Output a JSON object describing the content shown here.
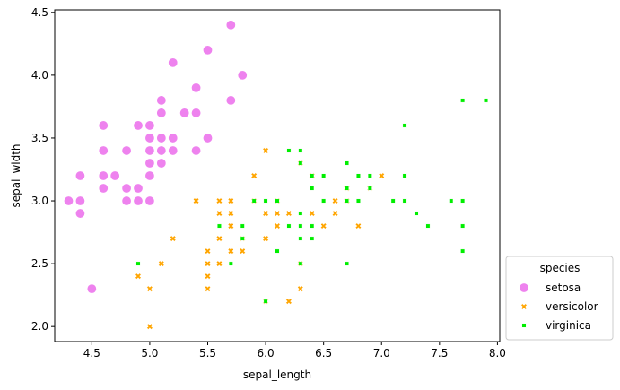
{
  "chart_data": {
    "type": "scatter",
    "title": "",
    "xlabel": "sepal_length",
    "ylabel": "sepal_width",
    "xlim": [
      4.18,
      8.02
    ],
    "ylim": [
      1.88,
      4.52
    ],
    "xticks": [
      "4.5",
      "5.0",
      "5.5",
      "6.0",
      "6.5",
      "7.0",
      "7.5",
      "8.0"
    ],
    "yticks": [
      "2.0",
      "2.5",
      "3.0",
      "3.5",
      "4.0",
      "4.5"
    ],
    "grid": false,
    "legend": {
      "title": "species",
      "placement": "outside-lower-right"
    },
    "series": [
      {
        "name": "setosa",
        "color": "#ee82ee",
        "marker": "circle",
        "points": [
          [
            5.1,
            3.5
          ],
          [
            4.9,
            3.0
          ],
          [
            4.7,
            3.2
          ],
          [
            4.6,
            3.1
          ],
          [
            5.0,
            3.6
          ],
          [
            5.4,
            3.9
          ],
          [
            4.6,
            3.4
          ],
          [
            5.0,
            3.4
          ],
          [
            4.4,
            2.9
          ],
          [
            4.9,
            3.1
          ],
          [
            5.4,
            3.7
          ],
          [
            4.8,
            3.4
          ],
          [
            4.8,
            3.0
          ],
          [
            4.3,
            3.0
          ],
          [
            5.8,
            4.0
          ],
          [
            5.7,
            4.4
          ],
          [
            5.4,
            3.9
          ],
          [
            5.1,
            3.5
          ],
          [
            5.7,
            3.8
          ],
          [
            5.1,
            3.8
          ],
          [
            5.4,
            3.4
          ],
          [
            5.1,
            3.7
          ],
          [
            4.6,
            3.6
          ],
          [
            5.1,
            3.3
          ],
          [
            4.8,
            3.4
          ],
          [
            5.0,
            3.0
          ],
          [
            5.0,
            3.4
          ],
          [
            5.2,
            3.5
          ],
          [
            5.2,
            3.4
          ],
          [
            4.7,
            3.2
          ],
          [
            4.8,
            3.1
          ],
          [
            5.4,
            3.4
          ],
          [
            5.2,
            4.1
          ],
          [
            5.5,
            4.2
          ],
          [
            4.9,
            3.1
          ],
          [
            5.0,
            3.2
          ],
          [
            5.5,
            3.5
          ],
          [
            4.9,
            3.6
          ],
          [
            4.4,
            3.0
          ],
          [
            5.1,
            3.4
          ],
          [
            5.0,
            3.5
          ],
          [
            4.5,
            2.3
          ],
          [
            4.4,
            3.2
          ],
          [
            5.0,
            3.5
          ],
          [
            5.1,
            3.8
          ],
          [
            4.8,
            3.0
          ],
          [
            5.1,
            3.8
          ],
          [
            4.6,
            3.2
          ],
          [
            5.3,
            3.7
          ],
          [
            5.0,
            3.3
          ]
        ]
      },
      {
        "name": "versicolor",
        "color": "#ffa500",
        "marker": "x",
        "points": [
          [
            7.0,
            3.2
          ],
          [
            6.4,
            3.2
          ],
          [
            6.9,
            3.1
          ],
          [
            5.5,
            2.3
          ],
          [
            6.5,
            2.8
          ],
          [
            5.7,
            2.8
          ],
          [
            6.3,
            3.3
          ],
          [
            4.9,
            2.4
          ],
          [
            6.6,
            2.9
          ],
          [
            5.2,
            2.7
          ],
          [
            5.0,
            2.0
          ],
          [
            5.9,
            3.0
          ],
          [
            6.0,
            2.2
          ],
          [
            6.1,
            2.9
          ],
          [
            5.6,
            2.9
          ],
          [
            6.7,
            3.1
          ],
          [
            5.6,
            3.0
          ],
          [
            5.8,
            2.7
          ],
          [
            6.2,
            2.2
          ],
          [
            5.6,
            2.5
          ],
          [
            5.9,
            3.2
          ],
          [
            6.1,
            2.8
          ],
          [
            6.3,
            2.5
          ],
          [
            6.1,
            2.8
          ],
          [
            6.4,
            2.9
          ],
          [
            6.6,
            3.0
          ],
          [
            6.8,
            2.8
          ],
          [
            6.7,
            3.0
          ],
          [
            6.0,
            2.9
          ],
          [
            5.7,
            2.6
          ],
          [
            5.5,
            2.4
          ],
          [
            5.5,
            2.4
          ],
          [
            5.8,
            2.7
          ],
          [
            6.0,
            2.7
          ],
          [
            5.4,
            3.0
          ],
          [
            6.0,
            3.4
          ],
          [
            6.7,
            3.1
          ],
          [
            6.3,
            2.3
          ],
          [
            5.6,
            3.0
          ],
          [
            5.5,
            2.5
          ],
          [
            5.5,
            2.6
          ],
          [
            6.1,
            3.0
          ],
          [
            5.8,
            2.6
          ],
          [
            5.0,
            2.3
          ],
          [
            5.6,
            2.7
          ],
          [
            5.7,
            3.0
          ],
          [
            5.7,
            2.9
          ],
          [
            6.2,
            2.9
          ],
          [
            5.1,
            2.5
          ],
          [
            5.7,
            2.8
          ]
        ]
      },
      {
        "name": "virginica",
        "color": "#00ee00",
        "marker": "square",
        "points": [
          [
            6.3,
            3.3
          ],
          [
            5.8,
            2.7
          ],
          [
            7.1,
            3.0
          ],
          [
            6.3,
            2.9
          ],
          [
            6.5,
            3.0
          ],
          [
            7.6,
            3.0
          ],
          [
            4.9,
            2.5
          ],
          [
            7.3,
            2.9
          ],
          [
            6.7,
            2.5
          ],
          [
            7.2,
            3.6
          ],
          [
            6.5,
            3.2
          ],
          [
            6.4,
            2.7
          ],
          [
            6.8,
            3.0
          ],
          [
            5.7,
            2.5
          ],
          [
            5.8,
            2.8
          ],
          [
            6.4,
            3.2
          ],
          [
            6.5,
            3.0
          ],
          [
            7.7,
            3.8
          ],
          [
            7.7,
            2.6
          ],
          [
            6.0,
            2.2
          ],
          [
            6.9,
            3.2
          ],
          [
            5.6,
            2.8
          ],
          [
            7.7,
            2.8
          ],
          [
            6.3,
            2.7
          ],
          [
            6.7,
            3.3
          ],
          [
            7.2,
            3.2
          ],
          [
            6.2,
            2.8
          ],
          [
            6.1,
            3.0
          ],
          [
            6.4,
            2.8
          ],
          [
            7.2,
            3.0
          ],
          [
            7.4,
            2.8
          ],
          [
            7.9,
            3.8
          ],
          [
            6.4,
            2.8
          ],
          [
            6.3,
            2.8
          ],
          [
            6.1,
            2.6
          ],
          [
            7.7,
            3.0
          ],
          [
            6.3,
            3.4
          ],
          [
            6.4,
            3.1
          ],
          [
            6.0,
            3.0
          ],
          [
            6.9,
            3.1
          ],
          [
            6.7,
            3.1
          ],
          [
            6.9,
            3.1
          ],
          [
            5.8,
            2.7
          ],
          [
            6.8,
            3.2
          ],
          [
            6.7,
            3.3
          ],
          [
            6.7,
            3.0
          ],
          [
            6.3,
            2.5
          ],
          [
            6.5,
            3.0
          ],
          [
            6.2,
            3.4
          ],
          [
            5.9,
            3.0
          ]
        ]
      }
    ]
  }
}
